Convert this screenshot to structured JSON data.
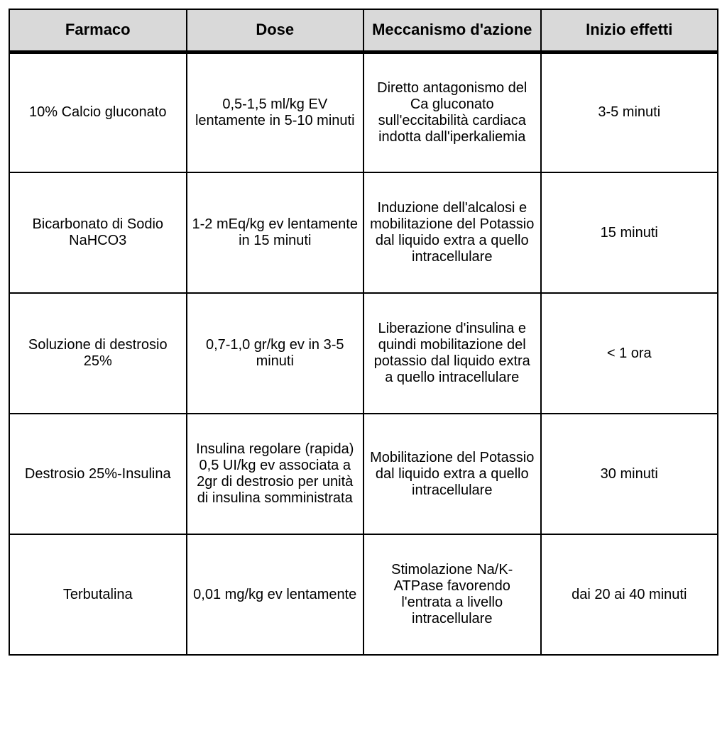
{
  "table": {
    "type": "table",
    "background_color": "#ffffff",
    "border_color": "#000000",
    "header_bg_color": "#d9d9d9",
    "header_fontsize": 22,
    "header_fontweight": 900,
    "cell_fontsize": 20,
    "font_family": "Tahoma, Verdana, Arial, sans-serif",
    "columns": [
      {
        "key": "farmaco",
        "label": "Farmaco",
        "width_pct": 24
      },
      {
        "key": "dose",
        "label": "Dose",
        "width_pct": 24
      },
      {
        "key": "meccanismo",
        "label": "Meccanismo d'azione",
        "width_pct": 24
      },
      {
        "key": "inizio",
        "label": "Inizio effetti",
        "width_pct": 24
      }
    ],
    "rows": [
      {
        "farmaco": "10% Calcio gluconato",
        "dose": "0,5-1,5 ml/kg EV lentamente in 5-10 minuti",
        "meccanismo": "Diretto antagonismo del Ca gluconato sull'eccitabilità cardiaca indotta dall'iperkaliemia",
        "inizio": "3-5 minuti"
      },
      {
        "farmaco": "Bicarbonato di Sodio NaHCO3",
        "dose": "1-2 mEq/kg ev lentamente in 15 minuti",
        "meccanismo": "Induzione dell'alcalosi e mobilitazione del Potassio dal liquido extra a quello intracellulare",
        "inizio": "15 minuti"
      },
      {
        "farmaco": "Soluzione di destrosio 25%",
        "dose": "0,7-1,0 gr/kg ev in 3-5 minuti",
        "meccanismo": "Liberazione d'insulina e quindi mobilitazione del potassio dal liquido extra a quello intracellulare",
        "inizio": "< 1 ora"
      },
      {
        "farmaco": "Destrosio 25%-Insulina",
        "dose": "Insulina regolare (rapida) 0,5 UI/kg ev associata a 2gr di destrosio  per unità di insulina somministrata",
        "meccanismo": "Mobilitazione del Potassio dal liquido extra a quello intracellulare",
        "inizio": "30 minuti"
      },
      {
        "farmaco": "Terbutalina",
        "dose": "0,01 mg/kg ev lentamente",
        "meccanismo": "Stimolazione Na/K-ATPase favorendo l'entrata a livello intracellulare",
        "inizio": "dai 20 ai 40 minuti"
      }
    ]
  }
}
